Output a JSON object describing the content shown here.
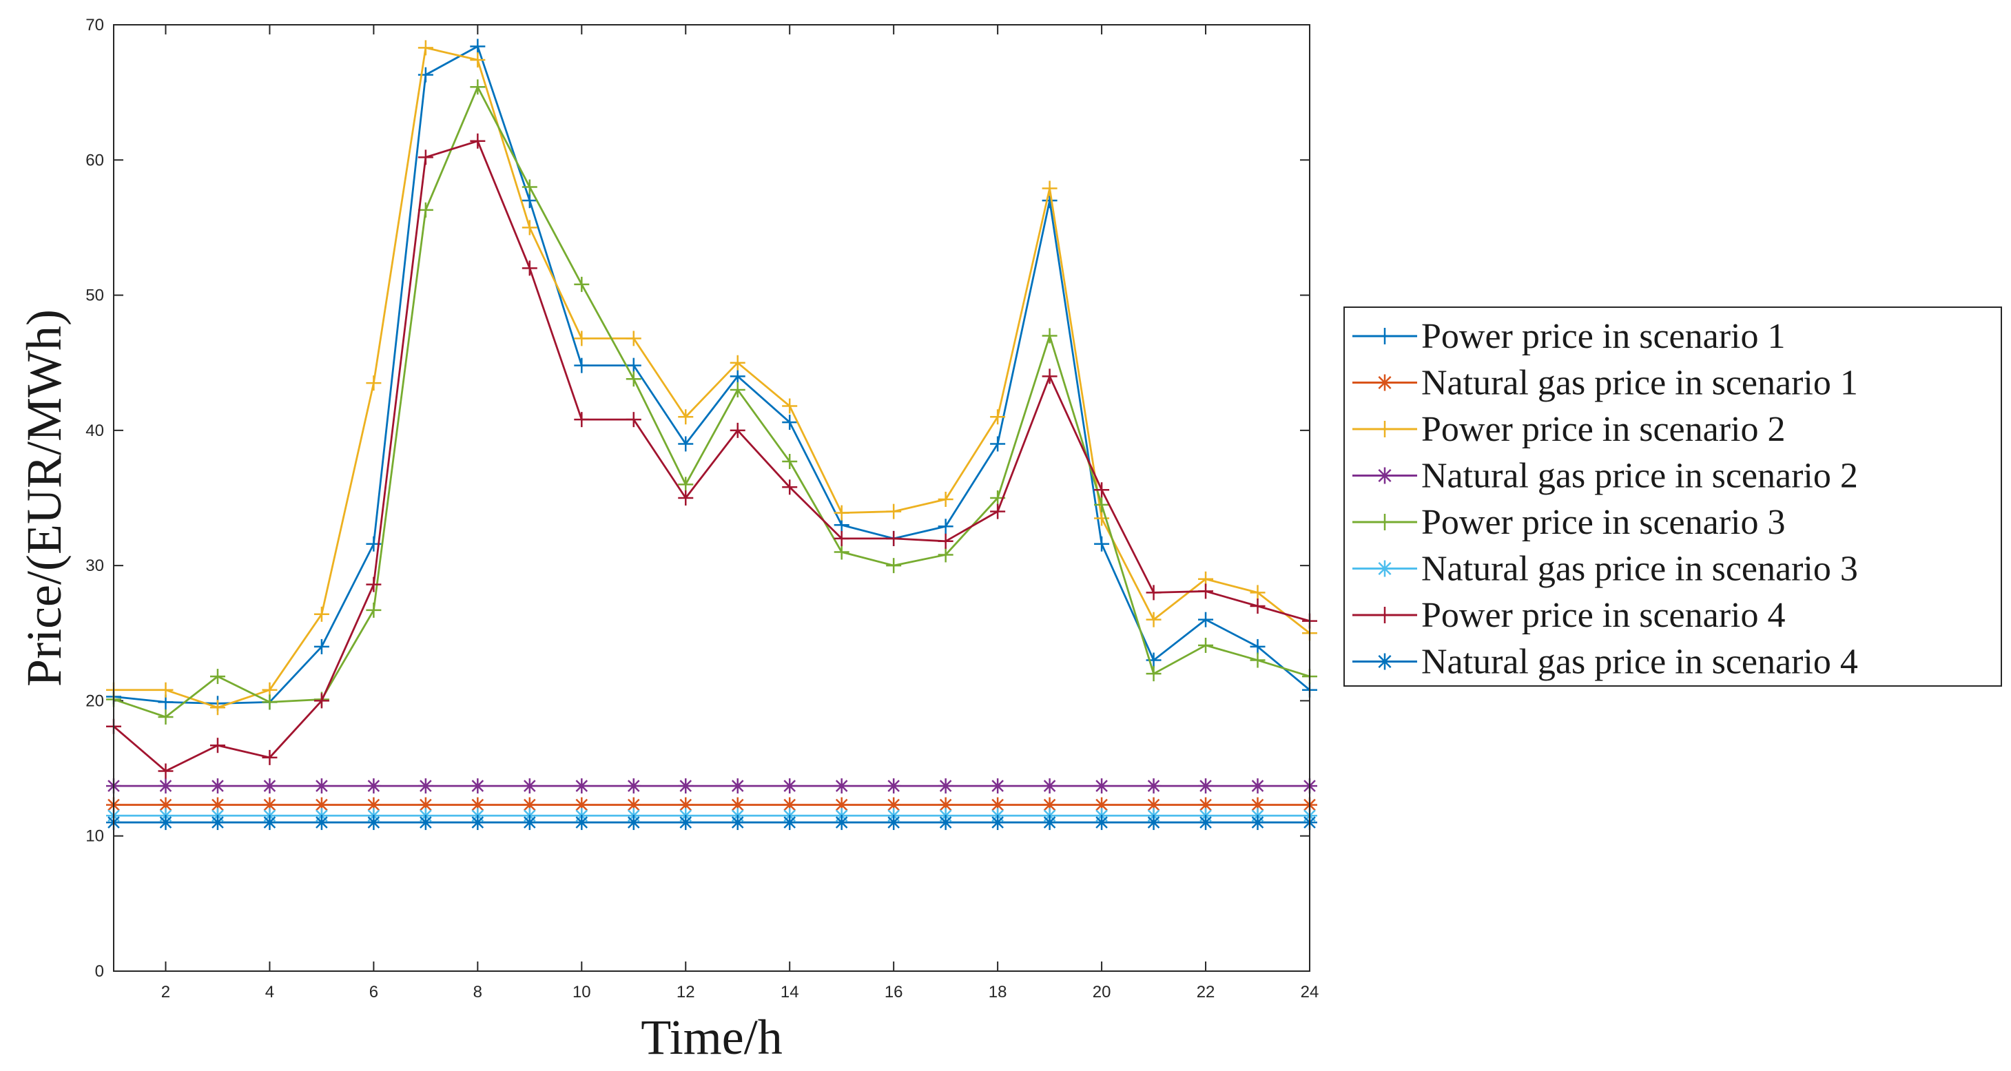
{
  "chart_data": {
    "type": "line",
    "title": "",
    "xlabel": "Time/h",
    "ylabel": "Price/(EUR/MWh)",
    "xlim": [
      1,
      24
    ],
    "ylim": [
      0,
      70
    ],
    "xticks": [
      2,
      4,
      6,
      8,
      10,
      12,
      14,
      16,
      18,
      20,
      22,
      24
    ],
    "yticks": [
      0,
      10,
      20,
      30,
      40,
      50,
      60,
      70
    ],
    "legend_position": "outside-right",
    "x": [
      1,
      2,
      3,
      4,
      5,
      6,
      7,
      8,
      9,
      10,
      11,
      12,
      13,
      14,
      15,
      16,
      17,
      18,
      19,
      20,
      21,
      22,
      23,
      24
    ],
    "series": [
      {
        "name": "Power price in scenario 1",
        "color": "#0072BD",
        "marker": "+",
        "values": [
          20.3,
          19.9,
          19.8,
          19.9,
          24.0,
          31.6,
          66.3,
          68.4,
          57.0,
          44.8,
          44.8,
          39.0,
          44.0,
          40.6,
          33.0,
          32.0,
          32.9,
          39.0,
          57.0,
          31.6,
          23.0,
          26.0,
          24.0,
          20.8
        ]
      },
      {
        "name": "Natural gas price in scenario 1",
        "color": "#D95319",
        "marker": "*",
        "values": [
          12.3,
          12.3,
          12.3,
          12.3,
          12.3,
          12.3,
          12.3,
          12.3,
          12.3,
          12.3,
          12.3,
          12.3,
          12.3,
          12.3,
          12.3,
          12.3,
          12.3,
          12.3,
          12.3,
          12.3,
          12.3,
          12.3,
          12.3,
          12.3
        ]
      },
      {
        "name": "Power price in scenario 2",
        "color": "#EDB120",
        "marker": "+",
        "values": [
          20.8,
          20.8,
          19.5,
          20.8,
          26.4,
          43.5,
          68.3,
          67.4,
          55.0,
          46.8,
          46.8,
          41.0,
          45.0,
          41.8,
          33.9,
          34.0,
          34.9,
          41.0,
          57.9,
          33.5,
          26.0,
          29.0,
          28.0,
          25.0
        ]
      },
      {
        "name": "Natural gas price in scenario 2",
        "color": "#7E2F8E",
        "marker": "*",
        "values": [
          13.7,
          13.7,
          13.7,
          13.7,
          13.7,
          13.7,
          13.7,
          13.7,
          13.7,
          13.7,
          13.7,
          13.7,
          13.7,
          13.7,
          13.7,
          13.7,
          13.7,
          13.7,
          13.7,
          13.7,
          13.7,
          13.7,
          13.7,
          13.7
        ]
      },
      {
        "name": "Power price in scenario 3",
        "color": "#77AC30",
        "marker": "+",
        "values": [
          20.1,
          18.8,
          21.8,
          19.9,
          20.1,
          26.7,
          56.3,
          65.4,
          58.0,
          50.8,
          43.8,
          36.0,
          43.0,
          37.7,
          31.0,
          30.0,
          30.8,
          35.0,
          47.0,
          34.5,
          22.0,
          24.1,
          23.0,
          21.8
        ]
      },
      {
        "name": "Natural gas price in scenario 3",
        "color": "#4DBEEE",
        "marker": "*",
        "values": [
          11.5,
          11.5,
          11.5,
          11.5,
          11.5,
          11.5,
          11.5,
          11.5,
          11.5,
          11.5,
          11.5,
          11.5,
          11.5,
          11.5,
          11.5,
          11.5,
          11.5,
          11.5,
          11.5,
          11.5,
          11.5,
          11.5,
          11.5,
          11.5
        ]
      },
      {
        "name": "Power price in scenario 4",
        "color": "#A2142F",
        "marker": "+",
        "values": [
          18.1,
          14.8,
          16.7,
          15.8,
          20.0,
          28.6,
          60.2,
          61.4,
          52.0,
          40.8,
          40.8,
          35.0,
          40.0,
          35.8,
          32.0,
          32.0,
          31.8,
          34.0,
          44.0,
          35.6,
          28.0,
          28.1,
          27.0,
          25.9
        ]
      },
      {
        "name": "Natural gas price in scenario 4",
        "color": "#0072BD",
        "marker": "*",
        "values": [
          11.0,
          11.0,
          11.0,
          11.0,
          11.0,
          11.0,
          11.0,
          11.0,
          11.0,
          11.0,
          11.0,
          11.0,
          11.0,
          11.0,
          11.0,
          11.0,
          11.0,
          11.0,
          11.0,
          11.0,
          11.0,
          11.0,
          11.0,
          11.0
        ]
      }
    ]
  }
}
